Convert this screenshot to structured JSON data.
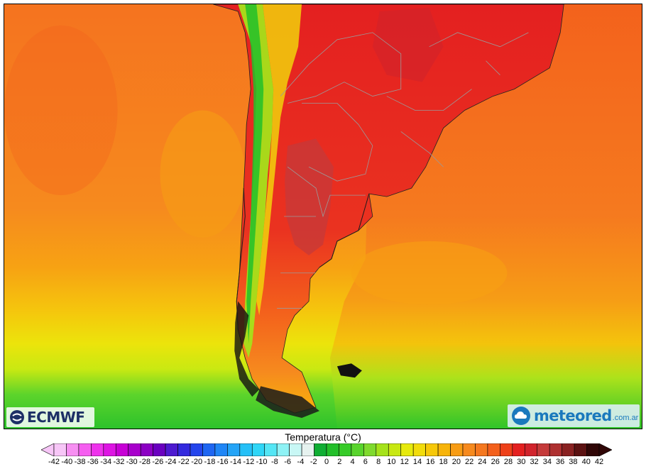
{
  "logos": {
    "ecmwf": "ECMWF",
    "meteored_name": "meteored",
    "meteored_domain": ".com.ar"
  },
  "legend": {
    "title": "Temperatura (°C)",
    "ticks": [
      "-42",
      "-40",
      "-38",
      "-36",
      "-34",
      "-32",
      "-30",
      "-28",
      "-26",
      "-24",
      "-22",
      "-20",
      "-18",
      "-16",
      "-14",
      "-12",
      "-10",
      "-8",
      "-6",
      "-4",
      "-2",
      "0",
      "2",
      "4",
      "6",
      "8",
      "10",
      "12",
      "14",
      "16",
      "18",
      "20",
      "22",
      "24",
      "26",
      "28",
      "30",
      "32",
      "34",
      "36",
      "38",
      "40",
      "42"
    ],
    "colors": [
      "#f7c6f7",
      "#f78ff2",
      "#f55ef0",
      "#ee32ec",
      "#dd14e3",
      "#c700d6",
      "#a800cc",
      "#8c00c4",
      "#6a00c0",
      "#4d1ad0",
      "#3329de",
      "#2445ec",
      "#1e66f2",
      "#1f86f6",
      "#24a4f7",
      "#25c0f7",
      "#2fd6f7",
      "#54e6f5",
      "#8ef2f5",
      "#c8f7f5",
      "#e6f2ef",
      "#0fae33",
      "#22bf2a",
      "#36cb28",
      "#58d42c",
      "#7fda2d",
      "#a5e21a",
      "#c8e812",
      "#e6ea0c",
      "#f2dc0a",
      "#f7c808",
      "#f7b40a",
      "#f79c14",
      "#f68a1e",
      "#f5781f",
      "#f3601c",
      "#ee4019",
      "#e42020",
      "#d1232c",
      "#c53a3a",
      "#ae3030",
      "#8a2222",
      "#5c1212",
      "#300606"
    ]
  }
}
